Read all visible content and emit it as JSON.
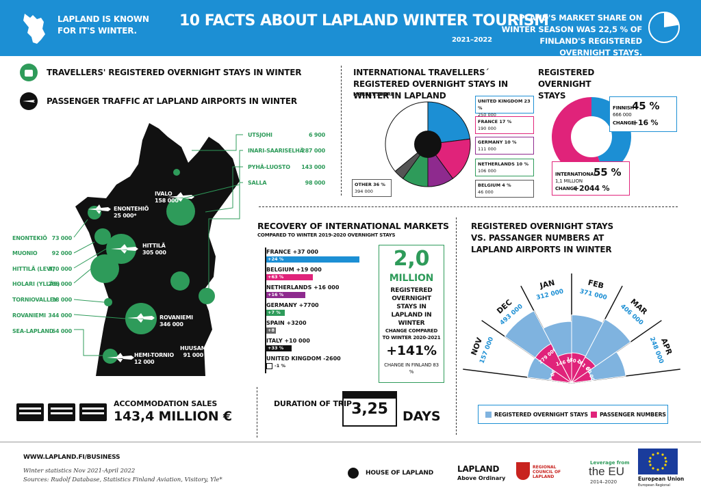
{
  "header": {
    "left_text": "LAPLAND IS KNOWN FOR IT'S WINTER.",
    "title": "10 FACTS ABOUT LAPLAND WINTER TOURISM",
    "years": "2021–2022",
    "share_text": "LAPLAND'S MARKET SHARE ON WINTER SEASON WAS 22,5 % OF FINLAND'S REGISTERED OVERNIGHT STAYS.",
    "share_fraction": 0.225
  },
  "legend_top": {
    "stays": "TRAVELLERS' REGISTERED OVERNIGHT STAYS IN WINTER",
    "traffic": "PASSENGER TRAFFIC AT LAPLAND AIRPORTS IN WINTER"
  },
  "map": {
    "left_places": [
      {
        "name": "ENONTEKIÖ",
        "value": "73 000"
      },
      {
        "name": "MUONIO",
        "value": "92 000"
      },
      {
        "name": "HITTILÄ (LEVI)",
        "value": "370 000"
      },
      {
        "name": "HOLARI (YLLÄS)",
        "value": "286 000"
      },
      {
        "name": "TORNIOVALLEY",
        "value": "18 000"
      },
      {
        "name": "ROVANIEMI",
        "value": "344 000"
      },
      {
        "name": "SEA-LAPLAND",
        "value": "64 000"
      }
    ],
    "right_places": [
      {
        "name": "UTSJOHI",
        "value": "6 900"
      },
      {
        "name": "INARI-SAARISELHÄ",
        "value": "287 000"
      },
      {
        "name": "PYHÄ-LUOSTO",
        "value": "143 000"
      },
      {
        "name": "SALLA",
        "value": "98 000"
      }
    ],
    "airports": [
      {
        "name": "IVALO",
        "value": "158 000"
      },
      {
        "name": "ENONTEHIÖ",
        "value": "25 000*"
      },
      {
        "name": "HITTILÄ",
        "value": "305 000"
      },
      {
        "name": "ROVANIEMI",
        "value": "346 000"
      },
      {
        "name": "HUUSAMO",
        "value": "91 000"
      },
      {
        "name": "HEMI-TORNIO",
        "value": "12 000"
      }
    ]
  },
  "intl": {
    "title": "INTERNATIONAL TRAVELLERS´ REGISTERED OVERNIGHT STAYS IN WINTER IN LAPLAND",
    "subtitle": "MARKET SHARE",
    "slices": [
      {
        "name": "UNITED KINGDOM 23 %",
        "value": "250 000",
        "share": 23,
        "color": "#1c8fd4"
      },
      {
        "name": "FRANCE 17 %",
        "value": "190 000",
        "share": 17,
        "color": "#e0237a"
      },
      {
        "name": "GERMANY 10 %",
        "value": "111 000",
        "share": 10,
        "color": "#8e2a8e"
      },
      {
        "name": "NETHERLANDS 10 %",
        "value": "106 000",
        "share": 10,
        "color": "#2e9b5a"
      },
      {
        "name": "BELGIUM 4 %",
        "value": "46 000",
        "share": 4,
        "color": "#555555"
      },
      {
        "name": "OTHER 36 %",
        "value": "394 000",
        "share": 36,
        "color": "#ffffff"
      }
    ]
  },
  "registered": {
    "title": "REGISTERED OVERNIGHT STAYS",
    "finnish_label": "FINNISH",
    "finnish_pct": "45 %",
    "finnish_value": "666 000",
    "finnish_change_label": "CHANGE",
    "finnish_change": "+16 %",
    "intl_label": "INTERNATIONAL",
    "intl_pct": "55 %",
    "intl_value": "1,1 MILLION",
    "intl_change_label": "CHANGE",
    "intl_change": "+2044 %",
    "finnish_share": 45
  },
  "recovery": {
    "title": "RECOVERY OF INTERNATIONAL MARKETS",
    "subtitle": "COMPARED TO WINTER 2019-2020 OVERNIGHT STAYS",
    "bars": [
      {
        "label": "FRANCE +37 000",
        "pct": "+24 %",
        "frac": 1.0,
        "color": "#1c8fd4"
      },
      {
        "label": "BELGIUM +19 000",
        "pct": "+63 %",
        "frac": 0.5,
        "color": "#e0237a"
      },
      {
        "label": "NETHERLANDS +16 000",
        "pct": "+16 %",
        "frac": 0.42,
        "color": "#8e2a8e"
      },
      {
        "label": "GERMANY +7700",
        "pct": "+7 %",
        "frac": 0.2,
        "color": "#2e9b5a"
      },
      {
        "label": "SPAIN +3200",
        "pct": "+8 %",
        "frac": 0.08,
        "color": "#666666"
      },
      {
        "label": "ITALY +10 000",
        "pct": "+33 %",
        "frac": 0.27,
        "color": "#111111"
      },
      {
        "label": "UNITED KINGDOM -2600",
        "pct": "-1 %",
        "frac": 0.0,
        "color": "#ffffff"
      }
    ]
  },
  "million": {
    "big": "2,0",
    "unit": "MILLION",
    "desc": "REGISTERED OVERNIGHT STAYS IN LAPLAND IN WINTER",
    "compare": "CHANGE COMPARED TO WINTER 2020-2021",
    "change": "+141%",
    "finland": "CHANGE IN FINLAND 83 %"
  },
  "vs": {
    "title": "REGISTERED OVERNIGHT STAYS VS. PASSANGER NUMBERS AT LAPLAND AIRPORTS IN WINTER",
    "months": [
      {
        "m": "NOV",
        "stays": "157 000",
        "pax": "69 000"
      },
      {
        "m": "DEC",
        "stays": "493 000",
        "pax": "279 000"
      },
      {
        "m": "JAN",
        "stays": "312 000",
        "pax": "146 000"
      },
      {
        "m": "FEB",
        "stays": "371 000",
        "pax": "150 000"
      },
      {
        "m": "MAR",
        "stays": "406 000",
        "pax": "141 000"
      },
      {
        "m": "APR",
        "stays": "248 000",
        "pax": "60 000"
      }
    ],
    "legend_stays": "REGISTERED OVERNIGHT STAYS",
    "legend_pax": "PASSENGER NUMBERS"
  },
  "accommodation": {
    "label": "ACCOMMODATION SALES",
    "value": "143,4 MILLION €"
  },
  "trip": {
    "label": "DURATION OF TRIP",
    "value": "3,25",
    "unit": "DAYS"
  },
  "footer": {
    "url": "WWW.LAPLAND.FI/BUSINESS",
    "note1": "Winter statistics Nov 2021-April 2022",
    "note2": "Sources: Rudolf Database, Statistics Finland Aviation, Visitory, Yle*",
    "hol": "HOUSE OF LAPLAND",
    "lapland": "LAPLAND",
    "lapland_sub": "Above Ordinary",
    "council": "REGIONAL COUNCIL OF LAPLAND",
    "eu_leverage": "Leverage from",
    "eu_the": "the EU",
    "eu_years": "2014–2020",
    "eu_union": "European Union",
    "eu_sub": "European Regional"
  }
}
